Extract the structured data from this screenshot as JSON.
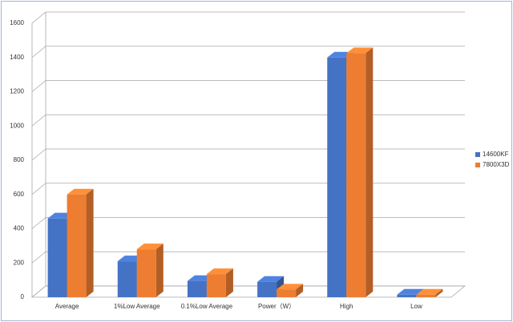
{
  "chart_data": {
    "type": "bar3d",
    "categories": [
      "Average",
      "1%Low Average",
      "0.1%Low Average",
      "Power（W）",
      "High",
      "Low"
    ],
    "series": [
      {
        "name": "14600KF",
        "color": "#4472c4",
        "values": [
          460,
          210,
          95,
          90,
          1400,
          15
        ]
      },
      {
        "name": "7800X3D",
        "color": "#ed7d31",
        "values": [
          600,
          280,
          135,
          45,
          1425,
          15
        ]
      }
    ],
    "ylim": [
      0,
      1600
    ],
    "yticks": [
      0,
      200,
      400,
      600,
      800,
      1000,
      1200,
      1400,
      1600
    ],
    "grid": true,
    "legend": "right"
  }
}
